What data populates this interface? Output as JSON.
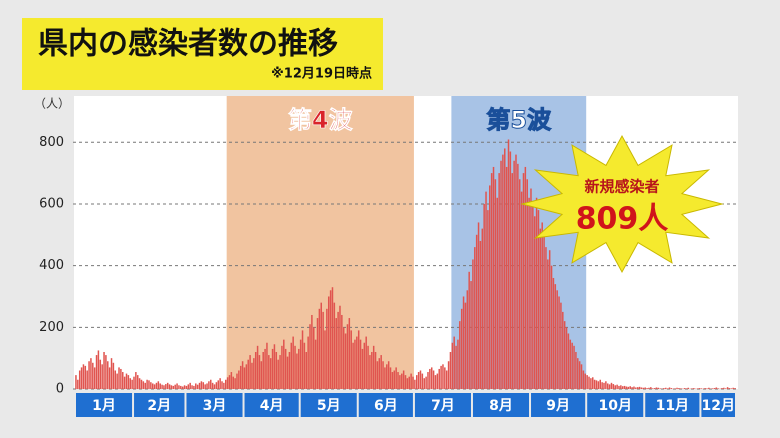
{
  "chart_data": {
    "type": "bar",
    "title": "県内の感染者数の推移",
    "subtitle": "※12月19日時点",
    "y_label": "（人）",
    "annotations": [
      "第4波",
      "第5波"
    ],
    "callout": {
      "label": "新規感染者",
      "text": "809人"
    },
    "color": "#e0544f",
    "grid": true,
    "ylim": [
      0,
      950
    ],
    "yticks": [
      0,
      200,
      400,
      600,
      800
    ],
    "categories": [
      "1月",
      null,
      null,
      null,
      null,
      null,
      null,
      null,
      null,
      null,
      null,
      null,
      null,
      null,
      null,
      null,
      null,
      null,
      null,
      null,
      null,
      null,
      null,
      null,
      null,
      null,
      null,
      null,
      null,
      null,
      null,
      "2月",
      null,
      null,
      null,
      null,
      null,
      null,
      null,
      null,
      null,
      null,
      null,
      null,
      null,
      null,
      null,
      null,
      null,
      null,
      null,
      null,
      null,
      null,
      null,
      null,
      null,
      null,
      null,
      "3月",
      null,
      null,
      null,
      null,
      null,
      null,
      null,
      null,
      null,
      null,
      null,
      null,
      null,
      null,
      null,
      null,
      null,
      null,
      null,
      null,
      null,
      null,
      null,
      null,
      null,
      null,
      null,
      null,
      null,
      null,
      "4月",
      null,
      null,
      null,
      null,
      null,
      null,
      null,
      null,
      null,
      null,
      null,
      null,
      null,
      null,
      null,
      null,
      null,
      null,
      null,
      null,
      null,
      null,
      null,
      null,
      null,
      null,
      null,
      null,
      null,
      "5月",
      null,
      null,
      null,
      null,
      null,
      null,
      null,
      null,
      null,
      null,
      null,
      null,
      null,
      null,
      null,
      null,
      null,
      null,
      null,
      null,
      null,
      null,
      null,
      null,
      null,
      null,
      null,
      null,
      null,
      null,
      "6月",
      null,
      null,
      null,
      null,
      null,
      null,
      null,
      null,
      null,
      null,
      null,
      null,
      null,
      null,
      null,
      null,
      null,
      null,
      null,
      null,
      null,
      null,
      null,
      null,
      null,
      null,
      null,
      null,
      null,
      "7月",
      null,
      null,
      null,
      null,
      null,
      null,
      null,
      null,
      null,
      null,
      null,
      null,
      null,
      null,
      null,
      null,
      null,
      null,
      null,
      null,
      null,
      null,
      null,
      null,
      null,
      null,
      null,
      null,
      null,
      null,
      "8月",
      null,
      null,
      null,
      null,
      null,
      null,
      null,
      null,
      null,
      null,
      null,
      null,
      null,
      null,
      null,
      null,
      null,
      null,
      null,
      null,
      null,
      null,
      null,
      null,
      null,
      null,
      null,
      null,
      null,
      null,
      "9月",
      null,
      null,
      null,
      null,
      null,
      null,
      null,
      null,
      null,
      null,
      null,
      null,
      null,
      null,
      null,
      null,
      null,
      null,
      null,
      null,
      null,
      null,
      null,
      null,
      null,
      null,
      null,
      null,
      null,
      "10月",
      null,
      null,
      null,
      null,
      null,
      null,
      null,
      null,
      null,
      null,
      null,
      null,
      null,
      null,
      null,
      null,
      null,
      null,
      null,
      null,
      null,
      null,
      null,
      null,
      null,
      null,
      null,
      null,
      null,
      null,
      "11月",
      null,
      null,
      null,
      null,
      null,
      null,
      null,
      null,
      null,
      null,
      null,
      null,
      null,
      null,
      null,
      null,
      null,
      null,
      null,
      null,
      null,
      null,
      null,
      null,
      null,
      null,
      null,
      null,
      null,
      "12月",
      null,
      null,
      null,
      null,
      null,
      null,
      null,
      null,
      null,
      null,
      null,
      null,
      null,
      null,
      null,
      null,
      null,
      null
    ],
    "values": [
      45,
      30,
      60,
      70,
      80,
      75,
      60,
      90,
      100,
      85,
      70,
      110,
      125,
      95,
      80,
      120,
      110,
      90,
      70,
      100,
      85,
      60,
      50,
      70,
      65,
      55,
      40,
      50,
      45,
      35,
      30,
      40,
      55,
      45,
      35,
      30,
      25,
      20,
      30,
      28,
      22,
      18,
      15,
      20,
      25,
      18,
      14,
      12,
      16,
      20,
      15,
      12,
      10,
      14,
      18,
      12,
      10,
      8,
      12,
      10,
      15,
      20,
      12,
      10,
      18,
      14,
      20,
      25,
      22,
      15,
      18,
      25,
      30,
      20,
      15,
      22,
      28,
      35,
      25,
      20,
      30,
      38,
      45,
      55,
      40,
      35,
      50,
      60,
      75,
      90,
      70,
      80,
      95,
      110,
      85,
      100,
      120,
      140,
      110,
      90,
      120,
      130,
      150,
      110,
      100,
      130,
      145,
      120,
      95,
      110,
      140,
      160,
      130,
      105,
      120,
      150,
      170,
      140,
      115,
      130,
      160,
      190,
      150,
      120,
      170,
      210,
      240,
      200,
      160,
      230,
      260,
      280,
      250,
      190,
      260,
      300,
      320,
      330,
      280,
      230,
      250,
      270,
      240,
      200,
      180,
      210,
      230,
      190,
      150,
      160,
      170,
      190,
      160,
      130,
      150,
      170,
      140,
      110,
      120,
      140,
      120,
      90,
      100,
      110,
      90,
      70,
      80,
      90,
      70,
      55,
      60,
      70,
      55,
      45,
      50,
      60,
      45,
      35,
      40,
      50,
      40,
      30,
      45,
      55,
      60,
      50,
      35,
      40,
      55,
      65,
      70,
      60,
      45,
      50,
      65,
      75,
      80,
      70,
      60,
      90,
      120,
      150,
      170,
      140,
      160,
      220,
      260,
      300,
      280,
      320,
      380,
      350,
      420,
      460,
      500,
      540,
      480,
      520,
      600,
      640,
      580,
      660,
      700,
      720,
      680,
      620,
      700,
      740,
      760,
      780,
      720,
      809,
      770,
      700,
      740,
      760,
      730,
      680,
      640,
      700,
      720,
      680,
      620,
      650,
      600,
      560,
      620,
      580,
      520,
      540,
      500,
      460,
      420,
      450,
      400,
      360,
      340,
      320,
      300,
      280,
      250,
      220,
      200,
      180,
      160,
      150,
      140,
      120,
      100,
      90,
      80,
      60,
      50,
      45,
      40,
      35,
      38,
      30,
      28,
      25,
      30,
      22,
      20,
      25,
      18,
      15,
      20,
      16,
      12,
      14,
      10,
      12,
      9,
      10,
      8,
      7,
      9,
      6,
      8,
      5,
      6,
      7,
      5,
      4,
      5,
      3,
      4,
      6,
      2,
      3,
      5,
      4,
      2,
      1,
      3,
      4,
      2,
      5,
      3,
      1,
      2,
      4,
      3,
      2,
      1,
      3,
      2,
      4,
      1,
      2,
      3,
      1,
      2,
      3,
      2,
      1,
      3,
      2,
      4,
      1,
      2,
      3,
      5,
      2,
      1,
      3,
      4,
      2,
      6,
      3,
      2,
      4,
      3
    ]
  }
}
